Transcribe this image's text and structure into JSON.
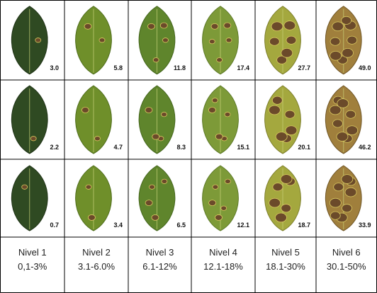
{
  "table": {
    "rows": [
      [
        "3.0",
        "5.8",
        "11.8",
        "17.4",
        "27.7",
        "49.0"
      ],
      [
        "2.2",
        "4.7",
        "8.3",
        "15.1",
        "20.1",
        "46.2"
      ],
      [
        "0.7",
        "3.4",
        "6.5",
        "12.1",
        "18.7",
        "33.9"
      ]
    ],
    "levels": [
      {
        "name": "Nivel 1",
        "range": "0,1-3%"
      },
      {
        "name": "Nivel 2",
        "range": "3.1-6.0%"
      },
      {
        "name": "Nivel 3",
        "range": "6.1-12%"
      },
      {
        "name": "Nivel 4",
        "range": "12.1-18%"
      },
      {
        "name": "Nivel 5",
        "range": "18.1-30%"
      },
      {
        "name": "Nivel 6",
        "range": "30.1-50%"
      }
    ]
  }
}
